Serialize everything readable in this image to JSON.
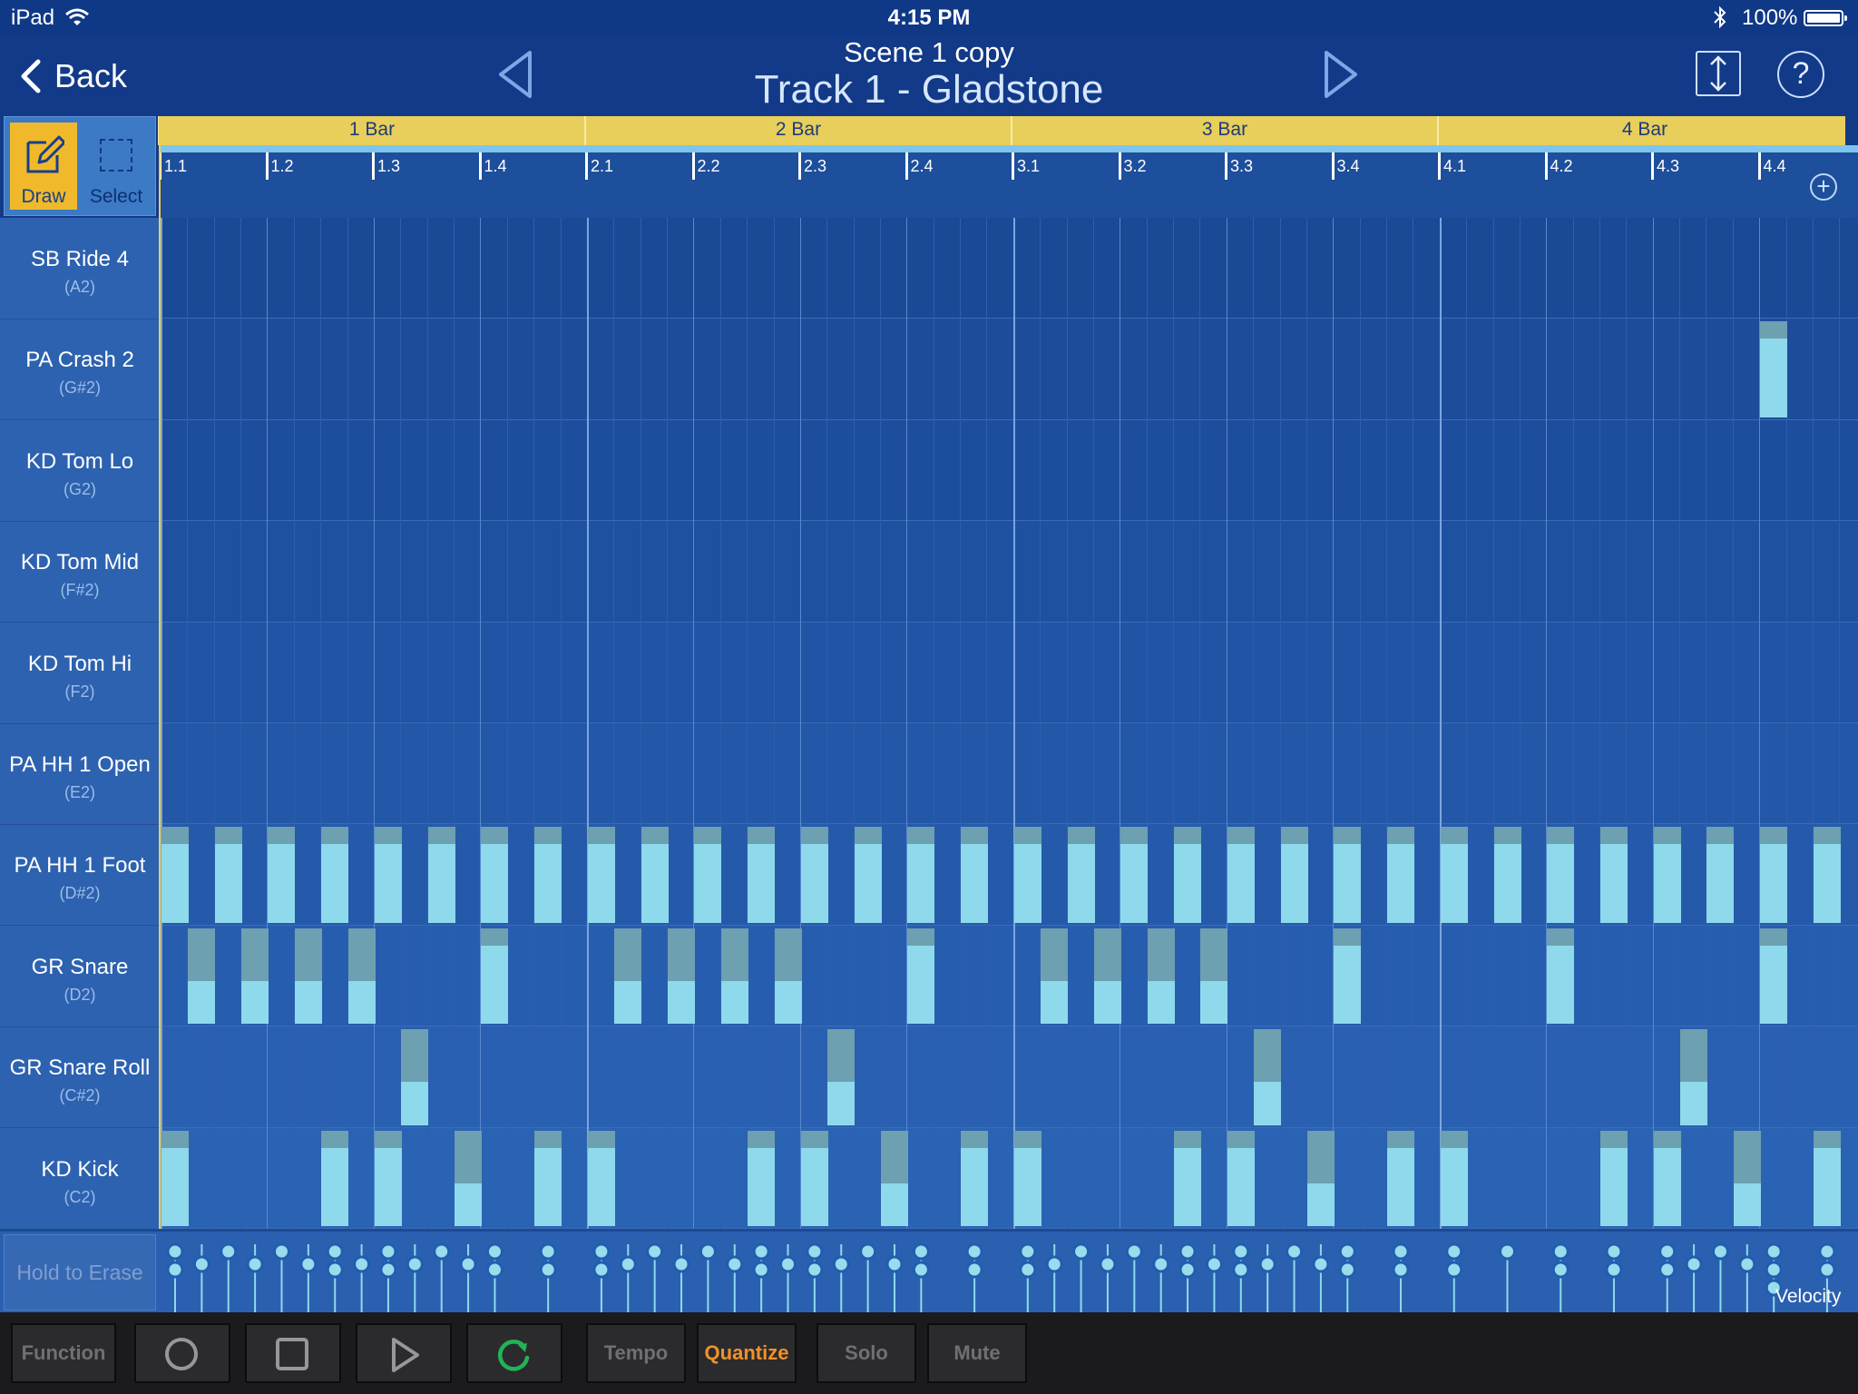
{
  "status_bar": {
    "device": "iPad",
    "time": "4:15 PM",
    "battery": "100%"
  },
  "header": {
    "back_label": "Back",
    "scene": "Scene  1 copy",
    "track": "Track 1 - Gladstone"
  },
  "tools": {
    "draw": "Draw",
    "select": "Select",
    "active": "draw"
  },
  "bars": [
    "1 Bar",
    "2 Bar",
    "3 Bar",
    "4 Bar"
  ],
  "beats": [
    "1.1",
    "1.2",
    "1.3",
    "1.4",
    "2.1",
    "2.2",
    "2.3",
    "2.4",
    "3.1",
    "3.2",
    "3.3",
    "3.4",
    "4.1",
    "4.2",
    "4.3",
    "4.4"
  ],
  "instruments": [
    {
      "name": "SB Ride 4",
      "note": "(A2)",
      "steps": []
    },
    {
      "name": "PA Crash 2",
      "note": "(G#2)",
      "steps": [
        60
      ]
    },
    {
      "name": "KD Tom Lo",
      "note": "(G2)",
      "steps": []
    },
    {
      "name": "KD Tom Mid",
      "note": "(F#2)",
      "steps": []
    },
    {
      "name": "KD Tom Hi",
      "note": "(F2)",
      "steps": []
    },
    {
      "name": "PA HH 1 Open",
      "note": "(E2)",
      "steps": []
    },
    {
      "name": "PA HH 1 Foot",
      "note": "(D#2)",
      "steps": [
        0,
        2,
        4,
        6,
        8,
        10,
        12,
        14,
        16,
        18,
        20,
        22,
        24,
        26,
        28,
        30,
        32,
        34,
        36,
        38,
        40,
        42,
        44,
        46,
        48,
        50,
        52,
        54,
        56,
        58,
        60,
        62
      ]
    },
    {
      "name": "GR Snare",
      "note": "(D2)",
      "steps": [
        1,
        3,
        5,
        7,
        12,
        17,
        19,
        21,
        23,
        28,
        33,
        35,
        37,
        39,
        44,
        52,
        60
      ]
    },
    {
      "name": "GR Snare Roll",
      "note": "(C#2)",
      "steps": [
        9,
        25,
        41,
        57
      ]
    },
    {
      "name": "KD Kick",
      "note": "(C2)",
      "steps": [
        0,
        6,
        8,
        11,
        14,
        16,
        22,
        24,
        27,
        30,
        32,
        38,
        40,
        43,
        46,
        48,
        54,
        56,
        59,
        62
      ]
    }
  ],
  "velocity_lane": {
    "hold_to_erase": "Hold to Erase",
    "label": "Velocity"
  },
  "transport": {
    "function": "Function",
    "tempo": "Tempo",
    "quantize": "Quantize",
    "solo": "Solo",
    "mute": "Mute"
  },
  "colors": {
    "background": "#123a86",
    "accent": "#f0b92c",
    "note_fill": "#8ed9ec",
    "note_top": "#6da0b0",
    "quantize_active": "#f0922a",
    "cycle_active": "#21b457"
  },
  "icons": {
    "back": "chevron-left-icon",
    "prev_scene": "triangle-left-icon",
    "next_scene": "triangle-right-icon",
    "resize": "vertical-resize-icon",
    "help": "question-icon",
    "draw": "pencil-icon",
    "select": "dashed-rectangle-icon",
    "add_bar": "plus-circle-icon",
    "record": "record-icon",
    "stop": "stop-icon",
    "play": "play-icon",
    "cycle": "cycle-icon"
  }
}
